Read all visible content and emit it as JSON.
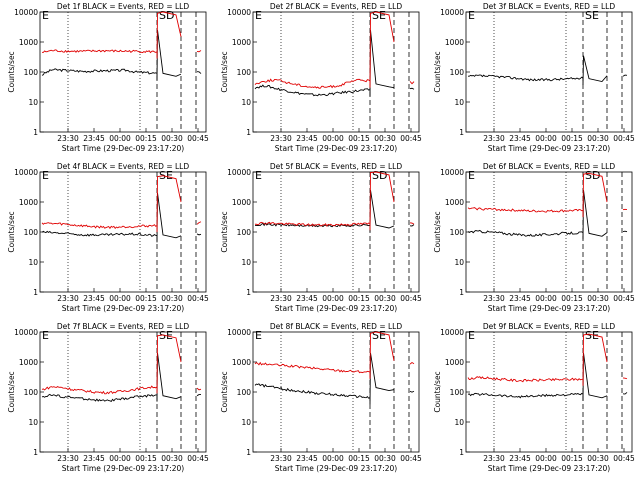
{
  "chart_data": [
    {
      "type": "line",
      "title": "Det 1f BLACK = Events, RED = LLD",
      "xlabel": "Start Time (29-Dec-09 23:17:20)",
      "ylabel": "Counts/sec",
      "x_ticks": [
        "23:30",
        "23:45",
        "00:00",
        "00:15",
        "00:30",
        "00:45"
      ],
      "y_ticks": [
        "1",
        "10",
        "100",
        "1000",
        "10000"
      ],
      "ylim": [
        1,
        10000
      ],
      "y_scale": "log",
      "markers": {
        "left": "E",
        "right": "SD"
      },
      "series": [
        {
          "name": "BLACK = Events",
          "color": "#000000",
          "values": [
            80,
            120,
            115,
            110,
            105,
            108,
            110,
            112,
            115,
            100,
            95,
            90,
            2500,
            90,
            85,
            95
          ]
        },
        {
          "name": "RED = LLD",
          "color": "#e00000",
          "values": [
            450,
            520,
            500,
            490,
            490,
            500,
            510,
            500,
            495,
            490,
            480,
            470,
            9000,
            10000,
            1500,
            500
          ]
        }
      ]
    },
    {
      "type": "line",
      "title": "Det 2f BLACK = Events, RED = LLD",
      "xlabel": "Start Time (29-Dec-09 23:17:20)",
      "ylabel": "Counts/sec",
      "x_ticks": [
        "23:30",
        "23:45",
        "00:00",
        "00:15",
        "00:30",
        "00:45"
      ],
      "y_ticks": [
        "1",
        "10",
        "100",
        "1000",
        "10000"
      ],
      "ylim": [
        1,
        10000
      ],
      "y_scale": "log",
      "markers": {
        "left": "E",
        "right": "SE"
      },
      "series": [
        {
          "name": "BLACK = Events",
          "color": "#000000",
          "values": [
            30,
            35,
            28,
            24,
            20,
            18,
            17,
            18,
            20,
            22,
            24,
            26,
            2500,
            40,
            30,
            28
          ]
        },
        {
          "name": "RED = LLD",
          "color": "#e00000",
          "values": [
            40,
            50,
            55,
            45,
            38,
            33,
            30,
            32,
            35,
            45,
            55,
            50,
            9000,
            10000,
            1000,
            45
          ]
        }
      ]
    },
    {
      "type": "line",
      "title": "Det 3f BLACK = Events, RED = LLD",
      "xlabel": "Start Time (29-Dec-09 23:17:20)",
      "ylabel": "Counts/sec",
      "x_ticks": [
        "23:30",
        "23:45",
        "00:00",
        "00:15",
        "00:30",
        "00:45"
      ],
      "y_ticks": [
        "1",
        "10",
        "100",
        "1000",
        "10000"
      ],
      "ylim": [
        1,
        10000
      ],
      "y_scale": "log",
      "markers": {
        "left": "E",
        "right": "SE"
      },
      "series": [
        {
          "name": "BLACK = Events",
          "color": "#000000",
          "values": [
            70,
            75,
            72,
            70,
            65,
            60,
            55,
            55,
            56,
            58,
            60,
            62,
            350,
            60,
            75,
            80
          ]
        }
      ]
    },
    {
      "type": "line",
      "title": "Det 4f BLACK = Events, RED = LLD",
      "xlabel": "Start Time (29-Dec-09 23:17:20)",
      "ylabel": "Counts/sec",
      "x_ticks": [
        "23:30",
        "23:45",
        "00:00",
        "00:15",
        "00:30",
        "00:45"
      ],
      "y_ticks": [
        "1",
        "10",
        "100",
        "1000",
        "10000"
      ],
      "ylim": [
        1,
        10000
      ],
      "y_scale": "log",
      "markers": {
        "left": "E",
        "right": "SE"
      },
      "series": [
        {
          "name": "BLACK = Events",
          "color": "#000000",
          "values": [
            100,
            95,
            90,
            85,
            80,
            80,
            80,
            82,
            85,
            85,
            80,
            75,
            2000,
            80,
            75,
            85
          ]
        },
        {
          "name": "RED = LLD",
          "color": "#e00000",
          "values": [
            200,
            190,
            185,
            170,
            160,
            150,
            145,
            145,
            150,
            155,
            160,
            165,
            7000,
            7500,
            1000,
            200
          ]
        }
      ]
    },
    {
      "type": "line",
      "title": "Det 5f BLACK = Events, RED = LLD",
      "xlabel": "Start Time (29-Dec-09 23:17:20)",
      "ylabel": "Counts/sec",
      "x_ticks": [
        "23:30",
        "23:45",
        "00:00",
        "00:15",
        "00:30",
        "00:45"
      ],
      "y_ticks": [
        "1",
        "10",
        "100",
        "1000",
        "10000"
      ],
      "ylim": [
        1,
        10000
      ],
      "y_scale": "log",
      "markers": {
        "left": "E",
        "right": "SD"
      },
      "series": [
        {
          "name": "BLACK = Events",
          "color": "#000000",
          "values": [
            180,
            180,
            175,
            170,
            165,
            162,
            160,
            160,
            162,
            165,
            168,
            170,
            2500,
            170,
            160,
            175
          ]
        },
        {
          "name": "RED = LLD",
          "color": "#e00000",
          "values": [
            190,
            200,
            195,
            185,
            180,
            175,
            170,
            172,
            175,
            180,
            185,
            190,
            9500,
            10000,
            1000,
            200
          ]
        }
      ]
    },
    {
      "type": "line",
      "title": "Det 6f BLACK = Events, RED = LLD",
      "xlabel": "Start Time (29-Dec-09 23:17:20)",
      "ylabel": "Counts/sec",
      "x_ticks": [
        "23:30",
        "23:45",
        "00:00",
        "00:15",
        "00:30",
        "00:45"
      ],
      "y_ticks": [
        "1",
        "10",
        "100",
        "1000",
        "10000"
      ],
      "ylim": [
        1,
        10000
      ],
      "y_scale": "log",
      "markers": {
        "left": "E",
        "right": "SD"
      },
      "series": [
        {
          "name": "BLACK = Events",
          "color": "#000000",
          "values": [
            100,
            105,
            100,
            95,
            85,
            80,
            78,
            80,
            85,
            90,
            92,
            95,
            2500,
            90,
            95,
            100
          ]
        },
        {
          "name": "RED = LLD",
          "color": "#e00000",
          "values": [
            600,
            600,
            580,
            560,
            540,
            520,
            500,
            500,
            500,
            510,
            520,
            520,
            8500,
            9000,
            1000,
            600
          ]
        }
      ]
    },
    {
      "type": "line",
      "title": "Det 7f BLACK = Events, RED = LLD",
      "xlabel": "Start Time (29-Dec-09 23:17:20)",
      "ylabel": "Counts/sec",
      "x_ticks": [
        "23:30",
        "23:45",
        "00:00",
        "00:15",
        "00:30",
        "00:45"
      ],
      "y_ticks": [
        "1",
        "10",
        "100",
        "1000",
        "10000"
      ],
      "ylim": [
        1,
        10000
      ],
      "y_scale": "log",
      "markers": {
        "left": "E",
        "right": "SE"
      },
      "series": [
        {
          "name": "BLACK = Events",
          "color": "#000000",
          "values": [
            70,
            80,
            70,
            65,
            60,
            55,
            50,
            55,
            60,
            70,
            75,
            80,
            2000,
            75,
            70,
            80
          ]
        },
        {
          "name": "RED = LLD",
          "color": "#e00000",
          "values": [
            120,
            150,
            140,
            120,
            110,
            100,
            95,
            100,
            110,
            125,
            140,
            150,
            7500,
            8000,
            1000,
            130
          ]
        }
      ]
    },
    {
      "type": "line",
      "title": "Det 8f BLACK = Events, RED = LLD",
      "xlabel": "Start Time (29-Dec-09 23:17:20)",
      "ylabel": "Counts/sec",
      "x_ticks": [
        "23:30",
        "23:45",
        "00:00",
        "00:15",
        "00:30",
        "00:45"
      ],
      "y_ticks": [
        "1",
        "10",
        "100",
        "1000",
        "10000"
      ],
      "ylim": [
        1,
        10000
      ],
      "y_scale": "log",
      "markers": {
        "left": "E",
        "right": "SE"
      },
      "series": [
        {
          "name": "BLACK = Events",
          "color": "#000000",
          "values": [
            180,
            160,
            140,
            120,
            110,
            100,
            90,
            85,
            80,
            75,
            70,
            65,
            2000,
            140,
            120,
            100
          ]
        },
        {
          "name": "RED = LLD",
          "color": "#e00000",
          "values": [
            900,
            850,
            800,
            750,
            700,
            650,
            600,
            560,
            520,
            500,
            480,
            460,
            9000,
            10000,
            1100,
            900
          ]
        }
      ]
    },
    {
      "type": "line",
      "title": "Det 9f BLACK = Events, RED = LLD",
      "xlabel": "Start Time (29-Dec-09 23:17:20)",
      "ylabel": "Counts/sec",
      "x_ticks": [
        "23:30",
        "23:45",
        "00:00",
        "00:15",
        "00:30",
        "00:45"
      ],
      "y_ticks": [
        "1",
        "10",
        "100",
        "1000",
        "10000"
      ],
      "ylim": [
        1,
        10000
      ],
      "y_scale": "log",
      "markers": {
        "left": "E",
        "right": "SE"
      },
      "series": [
        {
          "name": "BLACK = Events",
          "color": "#000000",
          "values": [
            80,
            85,
            82,
            78,
            72,
            70,
            72,
            75,
            78,
            80,
            82,
            85,
            2000,
            80,
            75,
            90
          ]
        },
        {
          "name": "RED = LLD",
          "color": "#e00000",
          "values": [
            280,
            300,
            290,
            270,
            250,
            240,
            245,
            250,
            255,
            260,
            265,
            270,
            8000,
            8500,
            1000,
            280
          ]
        }
      ]
    }
  ]
}
